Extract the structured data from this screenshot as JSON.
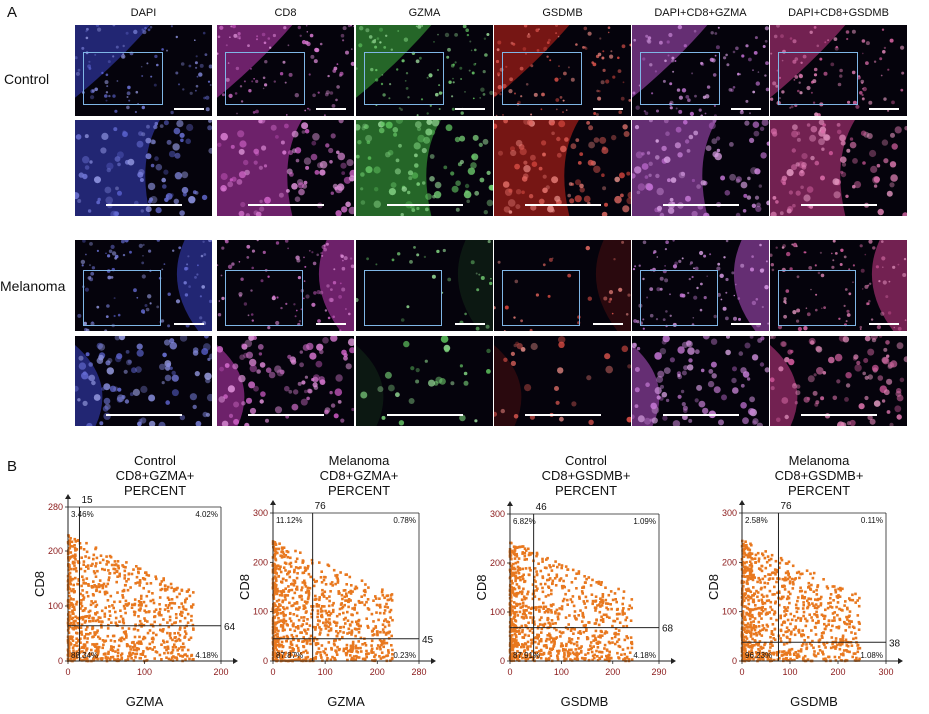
{
  "panel_a": {
    "letter": "A",
    "columns": [
      "DAPI",
      "CD8",
      "GZMA",
      "GSDMB",
      "DAPI+CD8+GZMA",
      "DAPI+CD8+GSDMB"
    ],
    "rows": [
      "Control",
      "Melanoma"
    ],
    "tile_colors": {
      "DAPI": "#3b44c8",
      "CD8": "#c23ab8",
      "GZMA": "#3fb83f",
      "GSDMB": "#d3261c",
      "DAPI+CD8+GZMA": "#b552c9",
      "DAPI+CD8+GSDMB": "#cc3a8a"
    }
  },
  "panel_b": {
    "letter": "B",
    "plots": [
      {
        "title_lines": [
          "Control",
          "CD8+GZMA+",
          "PERCENT"
        ],
        "xlabel": "GZMA",
        "ylabel": "CD8",
        "x_ticks": [
          "0",
          "100",
          "200"
        ],
        "y_ticks": [
          "0",
          "100",
          "200",
          "280"
        ],
        "xmax": 200,
        "ymax": 280,
        "gate_x": 15,
        "gate_y": 64,
        "gate_x_label": "15",
        "gate_y_label": "64",
        "q_ul": "3.46%",
        "q_ur": "4.02%",
        "q_ll": "88.34%",
        "q_lr": "4.18%"
      },
      {
        "title_lines": [
          "Melanoma",
          "CD8+GZMA+",
          "PERCENT"
        ],
        "xlabel": "GZMA",
        "ylabel": "CD8",
        "x_ticks": [
          "0",
          "100",
          "200",
          "280"
        ],
        "y_ticks": [
          "0",
          "100",
          "200",
          "300"
        ],
        "xmax": 280,
        "ymax": 300,
        "gate_x": 76,
        "gate_y": 45,
        "gate_x_label": "76",
        "gate_y_label": "45",
        "q_ul": "11.12%",
        "q_ur": "0.78%",
        "q_ll": "87.87%",
        "q_lr": "0.23%"
      },
      {
        "title_lines": [
          "Control",
          "CD8+GSDMB+",
          "PERCENT"
        ],
        "xlabel": "GSDMB",
        "ylabel": "CD8",
        "x_ticks": [
          "0",
          "100",
          "200",
          "290"
        ],
        "y_ticks": [
          "0",
          "100",
          "200",
          "300"
        ],
        "xmax": 290,
        "ymax": 300,
        "gate_x": 46,
        "gate_y": 68,
        "gate_x_label": "46",
        "gate_y_label": "68",
        "q_ul": "6.82%",
        "q_ur": "1.09%",
        "q_ll": "87.91%",
        "q_lr": "4.18%"
      },
      {
        "title_lines": [
          "Melanoma",
          "CD8+GSDMB+",
          "PERCENT"
        ],
        "xlabel": "GSDMB",
        "ylabel": "CD8",
        "x_ticks": [
          "0",
          "100",
          "200",
          "300"
        ],
        "y_ticks": [
          "0",
          "100",
          "200",
          "300"
        ],
        "xmax": 300,
        "ymax": 300,
        "gate_x": 76,
        "gate_y": 38,
        "gate_x_label": "76",
        "gate_y_label": "38",
        "q_ul": "2.58%",
        "q_ur": "0.11%",
        "q_ll": "96.23%",
        "q_lr": "1.08%"
      }
    ],
    "dot_color": "#e8781f"
  }
}
